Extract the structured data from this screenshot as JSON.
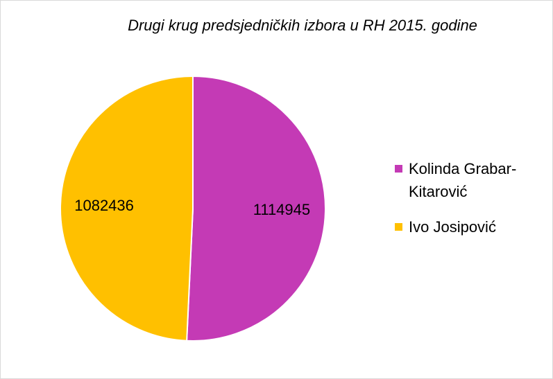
{
  "chart_data": {
    "type": "pie",
    "title": "Drugi krug predsjedničkih izbora u RH 2015. godine",
    "categories": [
      "Kolinda Grabar-Kitarović",
      "Ivo Josipović"
    ],
    "values": [
      1114945,
      1082436
    ],
    "colors": [
      "#c43ab5",
      "#ffc000"
    ],
    "legend": "right"
  }
}
